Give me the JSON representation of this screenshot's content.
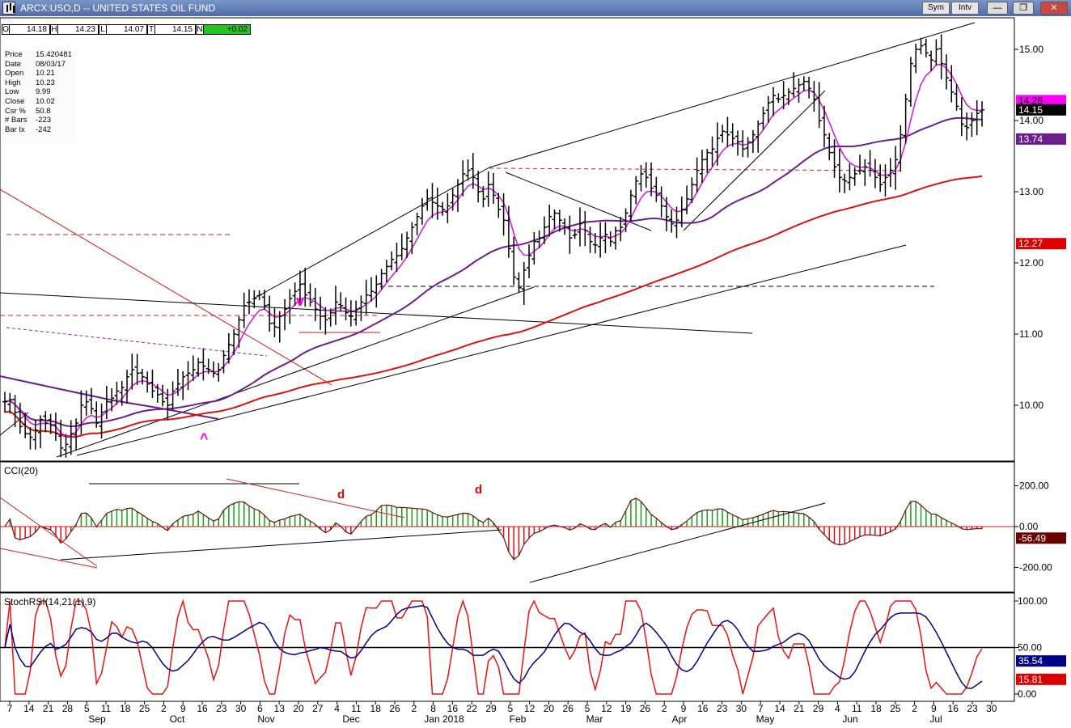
{
  "window": {
    "title": "ARCX:USO,D -- UNITED STATES OIL FUND",
    "sym_button": "Sym",
    "intv_button": "Intv",
    "minimize": "—",
    "restore": "❐",
    "close": "✕"
  },
  "ohlc_bar": {
    "open_label": "O",
    "open": "14.18",
    "high_label": "H",
    "high": "14.23",
    "low_label": "L",
    "low": "14.07",
    "close_label": "T",
    "close": "14.15",
    "net_label": "N",
    "net": "+0.02"
  },
  "data_window": [
    {
      "key": "Price",
      "value": "15.420481"
    },
    {
      "key": "Date",
      "value": "08/03/17"
    },
    {
      "key": "Open",
      "value": "10.21"
    },
    {
      "key": "High",
      "value": "10.23"
    },
    {
      "key": "Low",
      "value": "9.99"
    },
    {
      "key": "Close",
      "value": "10.02"
    },
    {
      "key": "Csr %",
      "value": "50.8"
    },
    {
      "key": "# Bars",
      "value": "-223"
    },
    {
      "key": "Bar Ix",
      "value": "-242"
    }
  ],
  "colors": {
    "price_bars": "#000000",
    "ema_fast": "#dd11dd",
    "ma_mid": "#6a1f8a",
    "ma_slow": "#dd1111",
    "cci_pos": "#1a9a1a",
    "cci_neg": "#dd1111",
    "stoch_k": "#ee1111",
    "stoch_d": "#000088",
    "badge_magenta": "#ff00ff",
    "badge_black": "#000000",
    "badge_purple": "#6a1f8a",
    "badge_red": "#dd0000",
    "badge_darkred": "#6b0000",
    "badge_navy": "#000088"
  },
  "chart_data": [
    {
      "type": "ohlc",
      "panel": "price",
      "title": "ARCX:USO,D -- UNITED STATES OIL FUND",
      "ylim": [
        9.3,
        15.4
      ],
      "yticks": [
        "15.00",
        "14.00",
        "13.00",
        "12.00",
        "11.00",
        "10.00"
      ],
      "closes": [
        10.05,
        10.08,
        9.9,
        9.7,
        9.6,
        9.55,
        9.65,
        9.8,
        9.75,
        9.72,
        9.6,
        9.4,
        9.45,
        9.6,
        9.75,
        10.0,
        10.05,
        9.95,
        9.75,
        9.9,
        10.05,
        10.1,
        10.2,
        10.25,
        10.4,
        10.5,
        10.45,
        10.4,
        10.3,
        10.2,
        10.15,
        10.05,
        10.0,
        10.2,
        10.3,
        10.4,
        10.45,
        10.5,
        10.6,
        10.55,
        10.5,
        10.45,
        10.5,
        10.7,
        10.85,
        11.0,
        11.2,
        11.4,
        11.45,
        11.5,
        11.55,
        11.4,
        11.15,
        11.1,
        11.25,
        11.35,
        11.5,
        11.6,
        11.7,
        11.55,
        11.45,
        11.35,
        11.25,
        11.2,
        11.3,
        11.45,
        11.4,
        11.3,
        11.25,
        11.35,
        11.45,
        11.55,
        11.6,
        11.7,
        11.85,
        11.95,
        12.05,
        12.1,
        12.2,
        12.35,
        12.5,
        12.65,
        12.8,
        12.9,
        12.85,
        12.8,
        12.75,
        12.8,
        12.95,
        13.1,
        13.25,
        13.3,
        13.2,
        13.0,
        12.9,
        13.1,
        12.95,
        12.75,
        12.6,
        12.2,
        11.8,
        11.65,
        11.9,
        12.1,
        12.3,
        12.35,
        12.5,
        12.65,
        12.7,
        12.6,
        12.5,
        12.35,
        12.4,
        12.55,
        12.45,
        12.3,
        12.25,
        12.35,
        12.4,
        12.3,
        12.45,
        12.5,
        12.7,
        12.95,
        13.15,
        13.25,
        13.2,
        13.05,
        12.95,
        12.8,
        12.65,
        12.55,
        12.6,
        12.75,
        12.9,
        13.1,
        13.3,
        13.45,
        13.55,
        13.6,
        13.75,
        13.85,
        13.8,
        13.75,
        13.7,
        13.6,
        13.7,
        13.8,
        13.95,
        14.1,
        14.25,
        14.35,
        14.3,
        14.35,
        14.4,
        14.45,
        14.5,
        14.55,
        14.45,
        14.3,
        14.0,
        13.8,
        13.55,
        13.35,
        13.2,
        13.15,
        13.2,
        13.25,
        13.3,
        13.35,
        13.3,
        13.2,
        13.1,
        13.2,
        13.3,
        13.45,
        13.8,
        14.3,
        14.8,
        15.0,
        15.05,
        14.95,
        14.85,
        15.0,
        14.8,
        14.6,
        14.4,
        14.2,
        13.95,
        13.9,
        14.0,
        14.1,
        14.15
      ]
    },
    {
      "type": "line",
      "panel": "cci",
      "title": "CCI(20)",
      "ylim": [
        -260,
        280
      ],
      "yticks": [
        "200.00",
        "0.00",
        "-200.00"
      ],
      "last_value": "-56.49"
    },
    {
      "type": "line",
      "panel": "stochrsi",
      "title": "StochRSI(14,21(1),9)",
      "ylim": [
        0,
        100
      ],
      "yticks": [
        "100.00",
        "50.00",
        "0.00"
      ],
      "last_values": {
        "k": "15.81",
        "d": "35.54"
      }
    }
  ],
  "price_badges": [
    {
      "label": "14.28",
      "color_key": "badge_magenta",
      "text_color": "#000000"
    },
    {
      "label": "14.15",
      "color_key": "badge_black",
      "text_color": "#ffffff"
    },
    {
      "label": "13.74",
      "color_key": "badge_purple",
      "text_color": "#ffffff"
    },
    {
      "label": "12.27",
      "color_key": "badge_red",
      "text_color": "#ffffff"
    }
  ],
  "x_axis": {
    "days": [
      "7",
      "14",
      "21",
      "28",
      "5",
      "11",
      "18",
      "25",
      "2",
      "9",
      "16",
      "23",
      "30",
      "6",
      "13",
      "20",
      "27",
      "4",
      "11",
      "18",
      "26",
      "2",
      "8",
      "16",
      "22",
      "29",
      "5",
      "12",
      "20",
      "26",
      "5",
      "12",
      "19",
      "26",
      "2",
      "9",
      "16",
      "23",
      "30",
      "7",
      "14",
      "21",
      "29",
      "4",
      "11",
      "18",
      "25",
      "2",
      "9",
      "16",
      "23",
      "30"
    ],
    "months": [
      "Sep",
      "Oct",
      "Nov",
      "Dec",
      "Jan 2018",
      "Feb",
      "Mar",
      "Apr",
      "May",
      "Jun",
      "Jul"
    ]
  },
  "annotations": {
    "v_mark": "v",
    "caret_mark": "^",
    "d_mark_1": "d",
    "d_mark_2": "d"
  }
}
